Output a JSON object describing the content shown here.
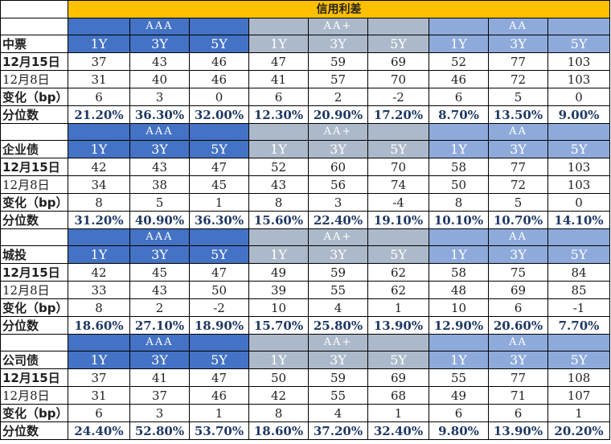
{
  "title": "信用利差",
  "grades": [
    "AAA",
    "AA+",
    "AA"
  ],
  "tenors": [
    "1Y",
    "3Y",
    "5Y"
  ],
  "sections": [
    {
      "name": "中票",
      "rows": [
        {
          "label": "12月15日",
          "values": [
            "37",
            "43",
            "46",
            "47",
            "59",
            "69",
            "52",
            "77",
            "103"
          ]
        },
        {
          "label": "12月8日",
          "values": [
            "31",
            "40",
            "46",
            "41",
            "57",
            "70",
            "46",
            "72",
            "103"
          ]
        },
        {
          "label": "变化（bp）",
          "values": [
            "6",
            "3",
            "0",
            "6",
            "2",
            "-2",
            "6",
            "5",
            "0"
          ]
        },
        {
          "label": "分位数",
          "values": [
            "21.20%",
            "36.30%",
            "32.00%",
            "12.30%",
            "20.90%",
            "17.20%",
            "8.70%",
            "13.50%",
            "9.00%"
          ]
        }
      ]
    },
    {
      "name": "企业债",
      "rows": [
        {
          "label": "12月15日",
          "values": [
            "42",
            "43",
            "47",
            "52",
            "60",
            "70",
            "58",
            "77",
            "103"
          ]
        },
        {
          "label": "12月8日",
          "values": [
            "34",
            "38",
            "45",
            "43",
            "56",
            "74",
            "50",
            "72",
            "103"
          ]
        },
        {
          "label": "变化（bp）",
          "values": [
            "8",
            "5",
            "1",
            "8",
            "3",
            "-4",
            "8",
            "5",
            "0"
          ]
        },
        {
          "label": "分位数",
          "values": [
            "31.20%",
            "40.90%",
            "36.30%",
            "15.60%",
            "22.40%",
            "19.10%",
            "10.10%",
            "10.70%",
            "14.10%"
          ]
        }
      ]
    },
    {
      "name": "城投",
      "rows": [
        {
          "label": "12月15日",
          "values": [
            "42",
            "45",
            "47",
            "49",
            "59",
            "62",
            "58",
            "75",
            "84"
          ]
        },
        {
          "label": "12月8日",
          "values": [
            "33",
            "43",
            "50",
            "39",
            "55",
            "62",
            "48",
            "69",
            "85"
          ]
        },
        {
          "label": "变化（bp）",
          "values": [
            "8",
            "2",
            "-2",
            "10",
            "4",
            "1",
            "10",
            "6",
            "-1"
          ]
        },
        {
          "label": "分位数",
          "values": [
            "18.60%",
            "27.10%",
            "18.90%",
            "15.70%",
            "25.80%",
            "13.90%",
            "12.90%",
            "20.60%",
            "7.70%"
          ]
        }
      ]
    },
    {
      "name": "公司债",
      "rows": [
        {
          "label": "12月15日",
          "values": [
            "37",
            "41",
            "47",
            "50",
            "59",
            "69",
            "55",
            "77",
            "108"
          ]
        },
        {
          "label": "12月8日",
          "values": [
            "31",
            "37",
            "46",
            "42",
            "55",
            "68",
            "49",
            "71",
            "107"
          ]
        },
        {
          "label": "变化（bp）",
          "values": [
            "6",
            "3",
            "1",
            "8",
            "4",
            "1",
            "6",
            "6",
            "1"
          ]
        },
        {
          "label": "分位数",
          "values": [
            "24.40%",
            "52.80%",
            "53.70%",
            "18.60%",
            "37.20%",
            "32.40%",
            "9.80%",
            "13.90%",
            "20.20%"
          ]
        }
      ]
    }
  ]
}
